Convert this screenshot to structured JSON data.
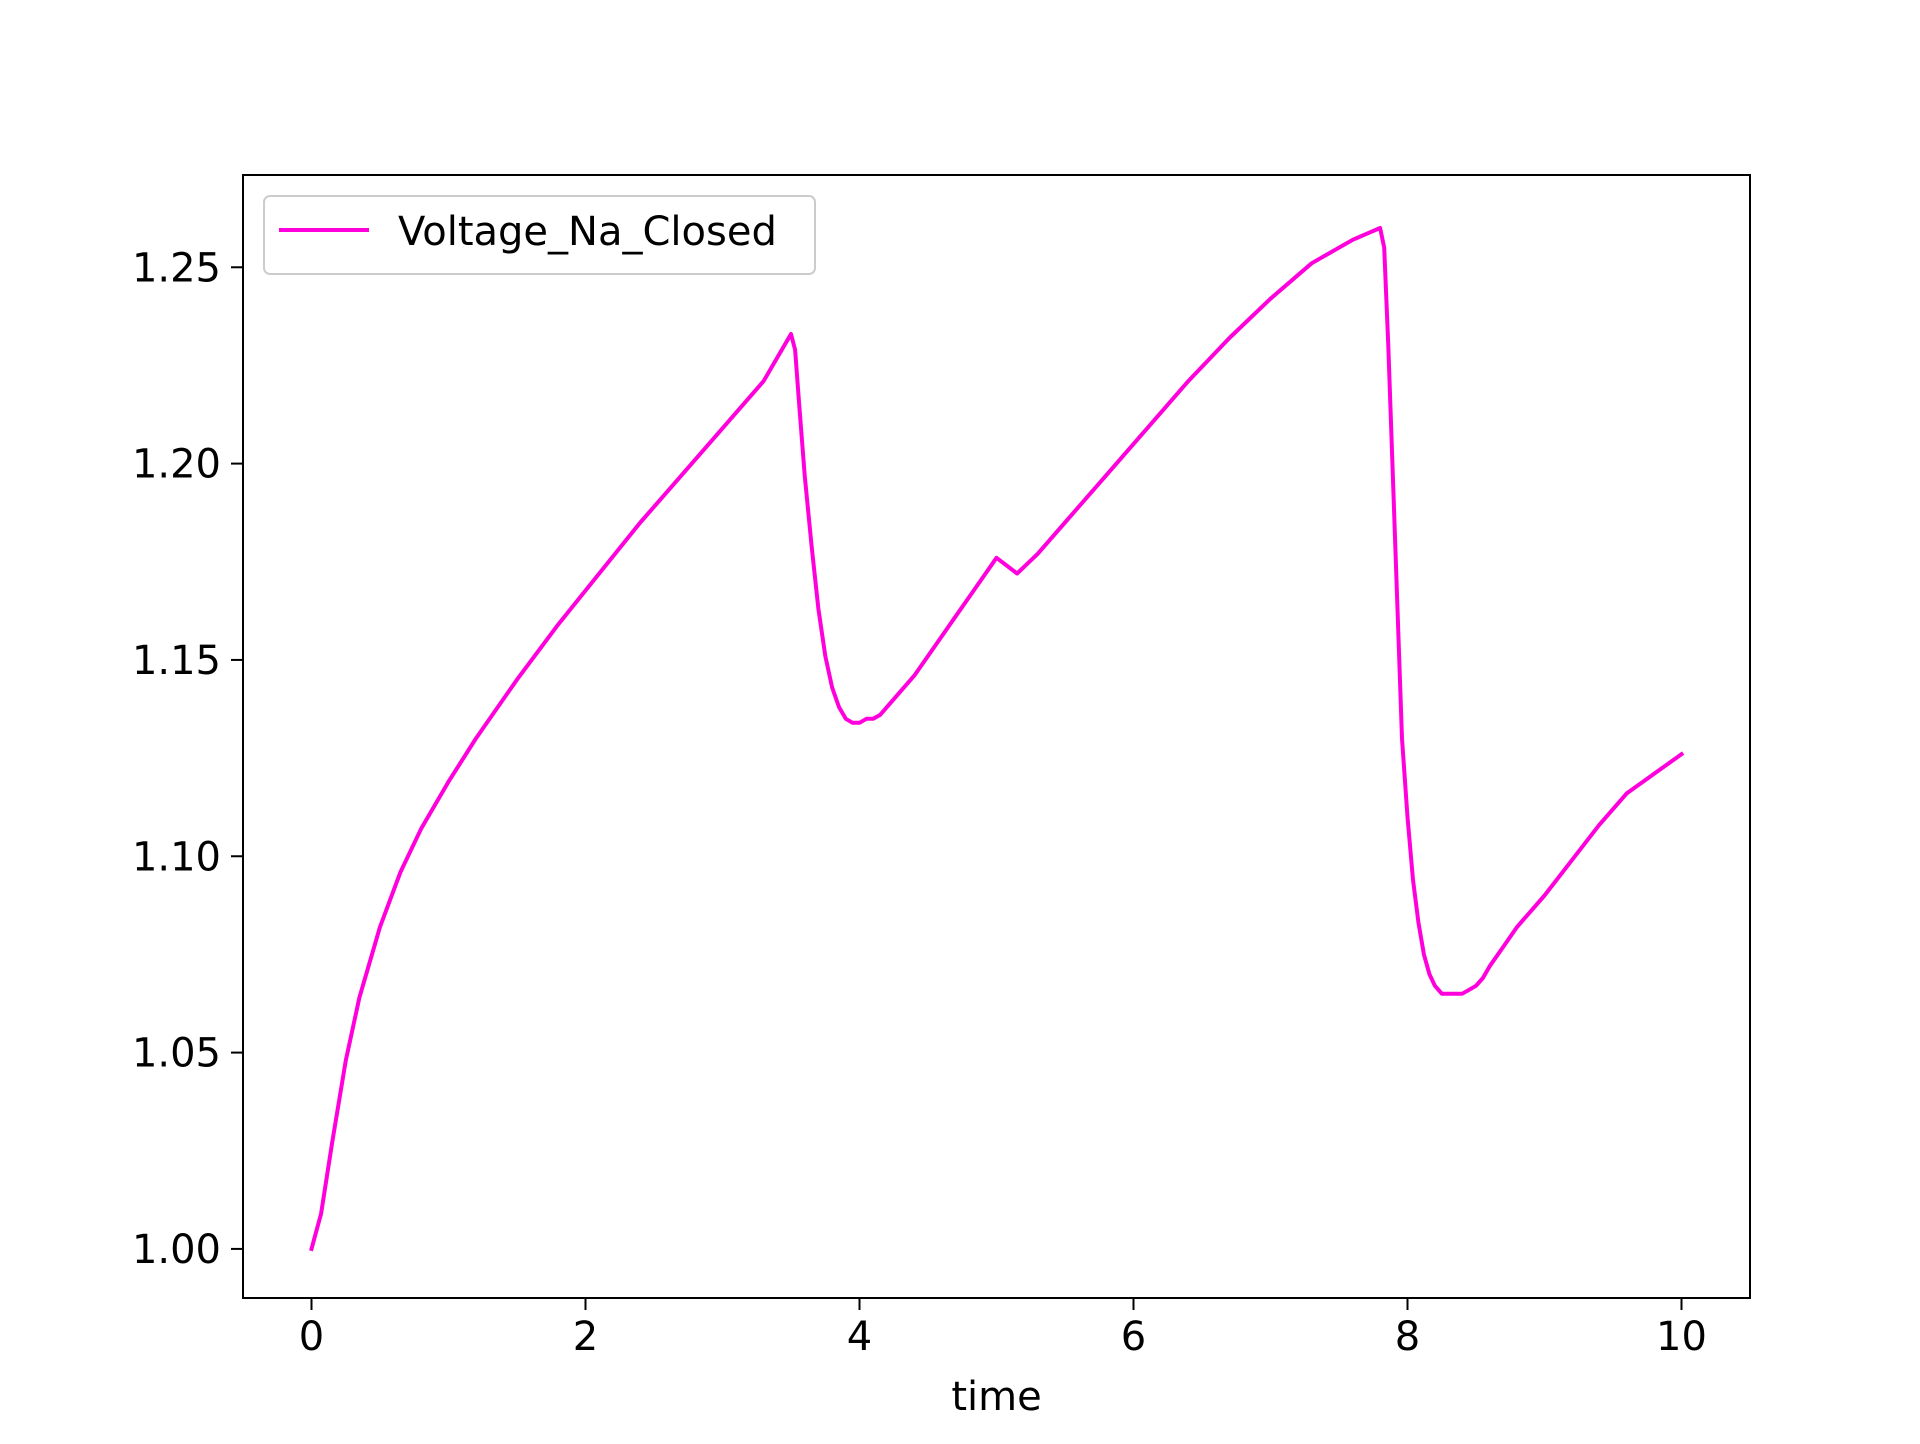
{
  "chart_data": {
    "type": "line",
    "title": "",
    "xlabel": "time",
    "ylabel": "",
    "xlim": [
      -0.5,
      10.5
    ],
    "ylim": [
      0.9875,
      1.2735
    ],
    "xticks": [
      0,
      2,
      4,
      6,
      8,
      10
    ],
    "xtick_labels": [
      "0",
      "2",
      "4",
      "6",
      "8",
      "10"
    ],
    "yticks": [
      1.0,
      1.05,
      1.1,
      1.15,
      1.2,
      1.25
    ],
    "ytick_labels": [
      "1.00",
      "1.05",
      "1.10",
      "1.15",
      "1.20",
      "1.25"
    ],
    "grid": false,
    "legend_position": "top-left",
    "series": [
      {
        "name": "Voltage_Na_Closed",
        "color": "#ff00dd",
        "x": [
          0,
          0.07,
          0.15,
          0.25,
          0.35,
          0.5,
          0.65,
          0.8,
          1.0,
          1.2,
          1.5,
          1.8,
          2.1,
          2.4,
          2.7,
          3.0,
          3.3,
          3.5,
          3.53,
          3.56,
          3.6,
          3.65,
          3.7,
          3.75,
          3.8,
          3.85,
          3.9,
          3.95,
          4.0,
          4.05,
          4.1,
          4.15,
          4.2,
          4.3,
          4.4,
          4.5,
          4.6,
          4.7,
          4.8,
          4.9,
          5.0,
          5.15,
          5.3,
          5.5,
          5.8,
          6.1,
          6.4,
          6.7,
          7.0,
          7.3,
          7.6,
          7.8,
          7.83,
          7.86,
          7.9,
          7.93,
          7.96,
          8.0,
          8.04,
          8.08,
          8.12,
          8.16,
          8.2,
          8.25,
          8.3,
          8.35,
          8.4,
          8.45,
          8.5,
          8.55,
          8.6,
          8.7,
          8.8,
          9.0,
          9.2,
          9.4,
          9.6,
          9.8,
          10.0
        ],
        "y": [
          1.0,
          1.009,
          1.027,
          1.048,
          1.064,
          1.082,
          1.096,
          1.107,
          1.119,
          1.13,
          1.145,
          1.159,
          1.172,
          1.185,
          1.197,
          1.209,
          1.221,
          1.233,
          1.229,
          1.215,
          1.197,
          1.179,
          1.163,
          1.151,
          1.143,
          1.138,
          1.135,
          1.134,
          1.134,
          1.135,
          1.135,
          1.136,
          1.138,
          1.142,
          1.146,
          1.151,
          1.156,
          1.161,
          1.166,
          1.171,
          1.176,
          1.172,
          1.177,
          1.185,
          1.197,
          1.209,
          1.221,
          1.232,
          1.242,
          1.251,
          1.257,
          1.26,
          1.255,
          1.23,
          1.19,
          1.16,
          1.13,
          1.11,
          1.094,
          1.083,
          1.075,
          1.07,
          1.067,
          1.065,
          1.065,
          1.065,
          1.065,
          1.066,
          1.067,
          1.069,
          1.072,
          1.077,
          1.082,
          1.09,
          1.099,
          1.108,
          1.116,
          1.121,
          1.126
        ]
      }
    ]
  }
}
